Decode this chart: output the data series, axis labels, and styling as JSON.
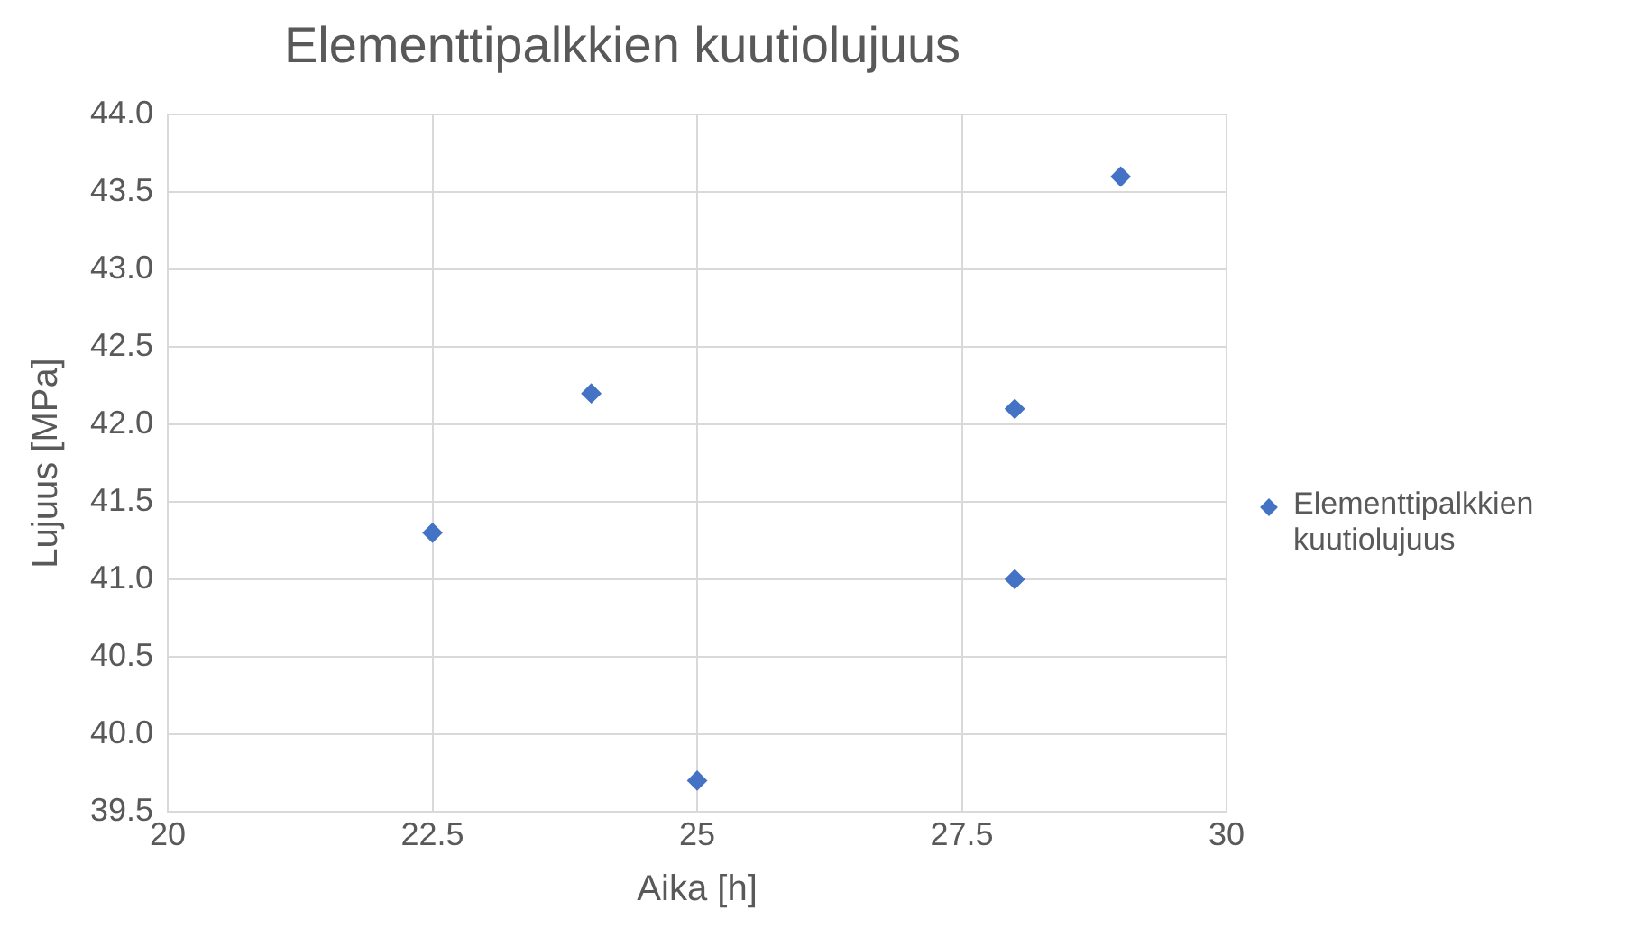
{
  "chart_data": {
    "type": "scatter",
    "title": "Elementtipalkkien kuutiolujuus",
    "xlabel": "Aika [h]",
    "ylabel": "Lujuus [MPa]",
    "x": [
      22.5,
      24,
      25,
      28,
      28,
      29
    ],
    "series": [
      {
        "name": "Elementtipalkkien kuutiolujuus",
        "color": "#4472c4",
        "values": [
          41.3,
          42.2,
          39.7,
          42.1,
          41.0,
          43.6
        ]
      }
    ],
    "xlim": [
      20,
      30
    ],
    "xticks": [
      20,
      22.5,
      25,
      27.5,
      30
    ],
    "ylim": [
      39.5,
      44
    ],
    "yticks": [
      39.5,
      {
        "value": 40,
        "label": "40.0"
      },
      40.5,
      {
        "value": 41,
        "label": "41.0"
      },
      41.5,
      {
        "value": 42,
        "label": "42.0"
      },
      42.5,
      {
        "value": 43,
        "label": "43.0"
      },
      43.5,
      {
        "value": 44,
        "label": "44.0"
      }
    ],
    "grid": true,
    "legend": "right",
    "marker": "diamond"
  }
}
